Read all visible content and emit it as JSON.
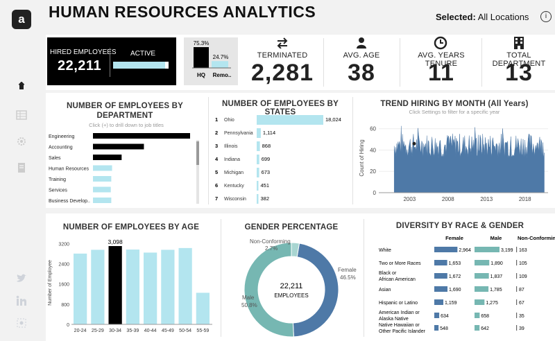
{
  "header": {
    "title": "HUMAN RESOURCES ANALYTICS",
    "selected_label": "Selected:",
    "selected_value": "All Locations",
    "info_symbol": "i"
  },
  "sidebar": {
    "logo": "a",
    "icons": [
      "dashboard-icon",
      "table-icon",
      "settings-icon",
      "document-icon",
      "twitter-icon",
      "linkedin-icon",
      "network-icon"
    ]
  },
  "kpis": {
    "hired": {
      "label": "HIRED EMPLOYEES",
      "value": "22,211",
      "active_label": "ACTIVE",
      "active_share": 0.94
    },
    "location": {
      "hq_label": "HQ",
      "remote_label": "Remo..",
      "hq_pct_label": "75.3%",
      "remote_pct_label": "24.7%",
      "hq_share": 0.753,
      "remote_share": 0.247
    },
    "terminated": {
      "label": "TERMINATED",
      "value": "2,281",
      "icon": "swap-arrows-icon"
    },
    "avg_age": {
      "label": "AVG. AGE",
      "value": "38",
      "icon": "person-icon"
    },
    "tenure": {
      "label": "AVG. YEARS TENURE",
      "value": "11",
      "icon": "clock-icon"
    },
    "departments": {
      "label": "TOTAL DEPARTMENT",
      "value": "13",
      "icon": "building-icon"
    }
  },
  "colors": {
    "accent": "#b3e5ef",
    "dark": "#000000",
    "blue": "#4e79a7",
    "teal": "#76b7b2",
    "panel": "#ffffff",
    "bg": "#f2f2f2"
  },
  "chart_data": [
    {
      "type": "bar",
      "title": "NUMBER OF EMPLOYEES BY DEPARTMENT",
      "subtitle": "Click (+) to drill down to job titles",
      "orientation": "horizontal",
      "categories": [
        "Engineering",
        "Accounting",
        "Sales",
        "Human Resources",
        "Training",
        "Services",
        "Business Develop.."
      ],
      "values": [
        6100,
        3200,
        1800,
        1200,
        1150,
        1120,
        1150
      ],
      "highlighted": [
        true,
        true,
        true,
        false,
        false,
        false,
        false
      ]
    },
    {
      "type": "table",
      "title": "NUMBER OF EMPLOYEES BY STATES",
      "ranks": [
        "1",
        "2",
        "3",
        "4",
        "5",
        "6",
        "7"
      ],
      "categories": [
        "Ohio",
        "Pennsylvania",
        "Illinois",
        "Indiana",
        "Michigan",
        "Kentucky",
        "Wisconsin"
      ],
      "values": [
        18024,
        1114,
        868,
        699,
        673,
        451,
        382
      ],
      "value_labels": [
        "18,024",
        "1,114",
        "868",
        "699",
        "673",
        "451",
        "382"
      ]
    },
    {
      "type": "area",
      "title": "TREND HIRING BY MONTH (All Years)",
      "subtitle": "Click Settings to filter for a specific year",
      "ylabel": "Count of Hiring",
      "ylim": [
        0,
        65
      ],
      "yticks": [
        "0",
        "20",
        "40",
        "60"
      ],
      "xticks": [
        "2003",
        "2008",
        "2013",
        "2018"
      ],
      "x_range": [
        1999,
        2021
      ],
      "start_year": 2001.0
    },
    {
      "type": "bar",
      "title": "NUMBER OF EMPLOYEES BY AGE",
      "ylabel": "Number of Employee",
      "categories": [
        "20-24",
        "25-29",
        "30-34",
        "35-39",
        "40-44",
        "45-49",
        "50-54",
        "55-59"
      ],
      "values": [
        2800,
        2950,
        3098,
        2960,
        2840,
        2950,
        3020,
        1250
      ],
      "highlight_label": "3,098",
      "highlight_index": 2,
      "yticks": [
        "0",
        "800",
        "1600",
        "2400",
        "3200"
      ],
      "ylim": [
        0,
        3400
      ]
    },
    {
      "type": "pie",
      "title": "GENDER PERCENTAGE",
      "center_value": "22,211",
      "center_label": "EMPLOYEES",
      "slices": [
        {
          "name": "Female",
          "pct_label": "46.5%",
          "value": 46.5
        },
        {
          "name": "Male",
          "pct_label": "50.8%",
          "value": 50.8
        },
        {
          "name": "Non-Conforming",
          "pct_label": "2.7%",
          "value": 2.7
        }
      ]
    },
    {
      "type": "bar",
      "title": "DIVERSITY BY RACE & GENDER",
      "columns": [
        "Female",
        "Male",
        "Non-Conforming"
      ],
      "categories": [
        "White",
        "Two or More Races",
        "Black or African American",
        "Asian",
        "Hispanic or Latino",
        "American Indian or Alaska Native",
        "Native Hawaiian or Other Pacific Islander"
      ],
      "female": [
        2964,
        1653,
        1672,
        1690,
        1159,
        634,
        548
      ],
      "male": [
        3199,
        1890,
        1837,
        1785,
        1275,
        658,
        642
      ],
      "nonconforming": [
        163,
        105,
        109,
        87,
        67,
        35,
        39
      ],
      "female_labels": [
        "2,964",
        "1,653",
        "1,672",
        "1,690",
        "1,159",
        "634",
        "548"
      ],
      "male_labels": [
        "3,199",
        "1,890",
        "1,837",
        "1,785",
        "1,275",
        "658",
        "642"
      ],
      "nc_labels": [
        "163",
        "105",
        "109",
        "87",
        "67",
        "35",
        "39"
      ]
    }
  ]
}
